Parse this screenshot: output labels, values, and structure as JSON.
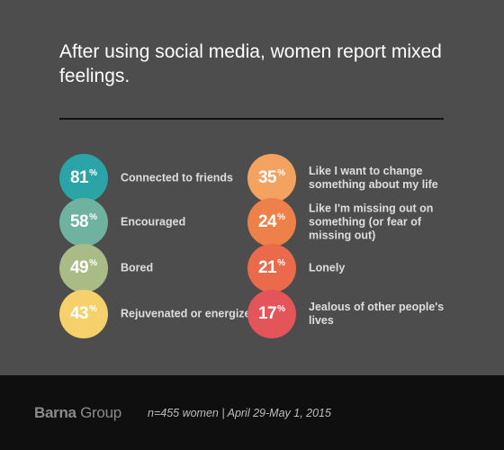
{
  "title": "After using social media, women report mixed feelings.",
  "chart_data": {
    "type": "table",
    "title": "After using social media, women report mixed feelings.",
    "unit": "%",
    "items": [
      {
        "value": 81,
        "label": "Connected to friends",
        "color": "#2aa4a6"
      },
      {
        "value": 58,
        "label": "Encouraged",
        "color": "#6fb2a0"
      },
      {
        "value": 49,
        "label": "Bored",
        "color": "#a9bc85"
      },
      {
        "value": 43,
        "label": "Rejuvenated or energized",
        "color": "#f5d06b"
      },
      {
        "value": 35,
        "label": "Like I want to change something about my life",
        "color": "#f4a25f"
      },
      {
        "value": 24,
        "label": "Like I'm missing out on something (or fear of missing out)",
        "color": "#ee8049"
      },
      {
        "value": 21,
        "label": "Lonely",
        "color": "#ea6a4b"
      },
      {
        "value": 17,
        "label": "Jealous of other people's lives",
        "color": "#e4555a"
      }
    ]
  },
  "footer": {
    "brand_bold": "Barna",
    "brand_light": "Group",
    "source": "n=455 women | April 29-May 1, 2015"
  }
}
